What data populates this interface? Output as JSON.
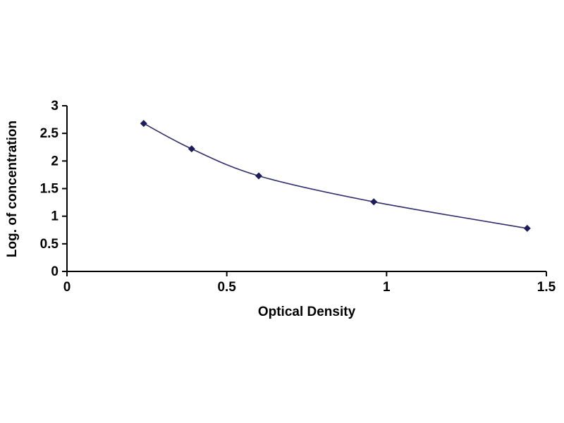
{
  "chart_data": {
    "type": "line",
    "title": "",
    "xlabel": "Optical Density",
    "ylabel": "Log. of concentration",
    "x": [
      0.24,
      0.39,
      0.6,
      0.96,
      1.44
    ],
    "y": [
      2.68,
      2.22,
      1.73,
      1.26,
      0.78
    ],
    "xlim": [
      0,
      1.5
    ],
    "ylim": [
      0,
      3
    ],
    "xticks": [
      0,
      0.5,
      1,
      1.5
    ],
    "yticks": [
      0,
      0.5,
      1,
      1.5,
      2,
      2.5,
      3
    ],
    "grid": false,
    "legend": "none",
    "marker": "diamond",
    "colors": {
      "line": "#30306e",
      "marker": "#1d1d5c",
      "axis": "#000000",
      "tick_text": "#000000"
    }
  }
}
